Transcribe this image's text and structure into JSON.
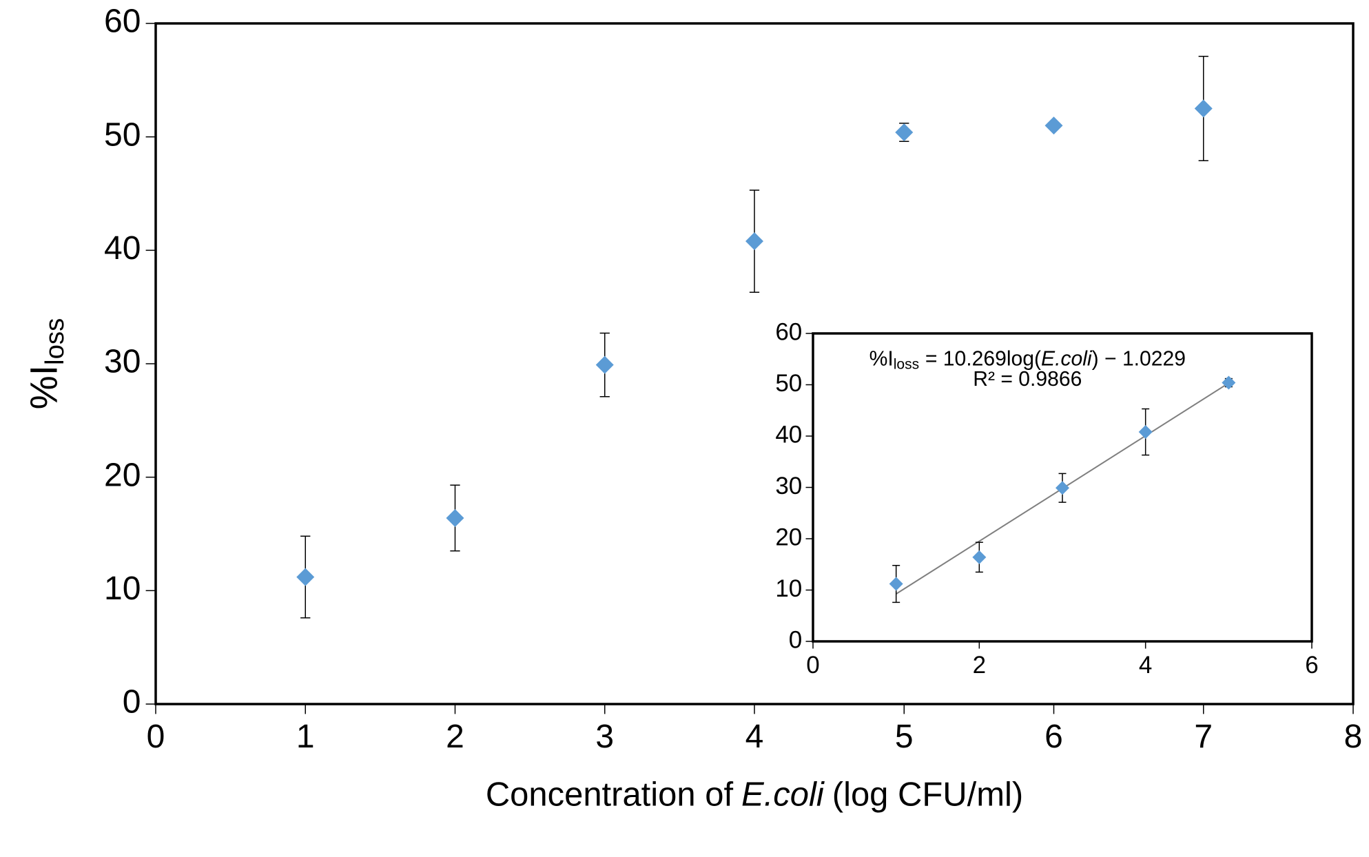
{
  "chart_data": [
    {
      "type": "scatter",
      "x_label": [
        "Concentration of",
        "E.coli",
        "(log CFU/ml)"
      ],
      "y_label": [
        "%I",
        "loss"
      ],
      "x": [
        1,
        2,
        3,
        4,
        5,
        6,
        7
      ],
      "series": [
        {
          "color": "#5b9bd5",
          "values": [
            11.2,
            16.4,
            29.9,
            40.8,
            50.4,
            51.0,
            52.5
          ],
          "errors": [
            3.6,
            2.9,
            2.8,
            4.5,
            0.8,
            0,
            4.6
          ]
        }
      ],
      "xlim": [
        0,
        8
      ],
      "xticks": [
        0,
        1,
        2,
        3,
        4,
        5,
        6,
        7,
        8
      ],
      "ylim": [
        0,
        60
      ],
      "yticks": [
        0,
        10,
        20,
        30,
        40,
        50,
        60
      ]
    },
    {
      "type": "scatter",
      "x": [
        1,
        2,
        3,
        4,
        5
      ],
      "series": [
        {
          "color": "#5b9bd5",
          "values": [
            11.2,
            16.4,
            29.9,
            40.8,
            50.4
          ],
          "errors": [
            3.6,
            2.9,
            2.8,
            4.5,
            0.8
          ]
        }
      ],
      "trendline": {
        "slope": 10.269,
        "intercept": -1.0229,
        "equation": [
          "%I",
          "loss",
          "= 10.269log(",
          "E.coli",
          ") − 1.0229"
        ],
        "r2_label": "R² = 0.9866"
      },
      "xlim": [
        0,
        6
      ],
      "xticks": [
        0,
        2,
        4,
        6
      ],
      "ylim": [
        0,
        60
      ],
      "yticks": [
        0,
        10,
        20,
        30,
        40,
        50,
        60
      ]
    }
  ]
}
